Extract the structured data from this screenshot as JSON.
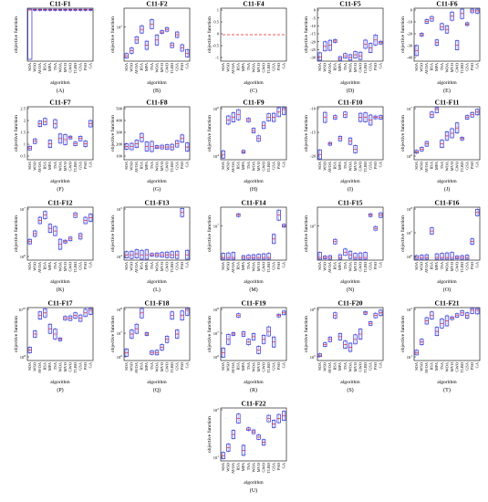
{
  "figure": {
    "algorithms": [
      "SOA",
      "WSO",
      "AVOA",
      "RSA",
      "MPA",
      "TSA",
      "WOA",
      "MVO",
      "GWO",
      "TLBO",
      "GSA",
      "PSO",
      "GA"
    ],
    "xlabel": "algorithm",
    "ylabel": "objective function",
    "colors": {
      "box": "#2a2ad6",
      "median": "#e8232a",
      "outlier": "#222222",
      "axis": "#000000"
    }
  },
  "chart_data": [
    {
      "type": "box",
      "title": "C11-F1",
      "letter": "(A)",
      "scale": "linear",
      "yticks": [],
      "medians": [
        0.97,
        0.97,
        0.97,
        0.97,
        0.97,
        0.97,
        0.97,
        0.97,
        0.97,
        0.97,
        0.97,
        0.97,
        0.97
      ]
    },
    {
      "type": "box",
      "title": "C11-F2",
      "letter": "(B)",
      "scale": "log",
      "yticks": [
        "10^2"
      ],
      "medians": [
        0.1,
        0.2,
        0.4,
        0.6,
        0.3,
        0.7,
        0.4,
        0.55,
        0.6,
        0.3,
        0.5,
        0.25,
        0.15
      ]
    },
    {
      "type": "box",
      "title": "C11-F4",
      "letter": "(C)",
      "scale": "linear",
      "yticks": [
        "1",
        "0.5",
        "0",
        "-0.5",
        "-1"
      ],
      "medians": [
        0.5,
        0.5,
        0.5,
        0.5,
        0.5,
        0.5,
        0.5,
        0.5,
        0.5,
        0.5,
        0.5,
        0.5,
        0.5
      ]
    },
    {
      "type": "box",
      "title": "C11-F5",
      "letter": "(D)",
      "scale": "linear",
      "yticks": [
        "0",
        "-5",
        "-10",
        "-15",
        "-20",
        "-25",
        "-30"
      ],
      "medians": [
        0.08,
        0.28,
        0.3,
        0.38,
        0.05,
        0.1,
        0.07,
        0.12,
        0.1,
        0.32,
        0.25,
        0.4,
        0.35
      ]
    },
    {
      "type": "box",
      "title": "C11-F6",
      "letter": "(E)",
      "scale": "linear",
      "yticks": [
        "0",
        "-10",
        "-20",
        "-30",
        "-40"
      ],
      "medians": [
        0.2,
        0.5,
        0.75,
        0.8,
        0.35,
        0.65,
        0.6,
        0.85,
        0.3,
        0.9,
        0.7,
        0.95,
        0.95
      ]
    },
    {
      "type": "box",
      "title": "C11-F7",
      "letter": "(F)",
      "scale": "linear",
      "yticks": [
        "2.5",
        "2",
        "1.5",
        "1",
        "0.5"
      ],
      "medians": [
        0.22,
        0.35,
        0.68,
        0.72,
        0.3,
        0.68,
        0.4,
        0.38,
        0.42,
        0.3,
        0.4,
        0.3,
        0.68
      ]
    },
    {
      "type": "box",
      "title": "C11-F8",
      "letter": "(G)",
      "scale": "linear",
      "yticks": [
        "500",
        "400",
        "300",
        "200",
        "100"
      ],
      "medians": [
        0.25,
        0.25,
        0.3,
        0.42,
        0.25,
        0.25,
        0.24,
        0.24,
        0.24,
        0.24,
        0.3,
        0.4,
        0.24
      ]
    },
    {
      "type": "box",
      "title": "C11-F9",
      "letter": "(H)",
      "scale": "log",
      "yticks": [
        "10^6",
        "10^4"
      ],
      "medians": [
        0.1,
        0.75,
        0.8,
        0.85,
        0.15,
        0.75,
        0.55,
        0.4,
        0.65,
        0.8,
        0.8,
        0.9,
        0.95
      ]
    },
    {
      "type": "box",
      "title": "C11-F10",
      "letter": "(I)",
      "scale": "linear",
      "yticks": [
        "-10",
        "-15",
        "-20"
      ],
      "medians": [
        0.1,
        0.8,
        0.3,
        0.8,
        0.4,
        0.85,
        0.35,
        0.2,
        0.8,
        0.8,
        0.75,
        0.8,
        0.8
      ]
    },
    {
      "type": "box",
      "title": "C11-F11",
      "letter": "(J)",
      "scale": "log",
      "yticks": [
        "10^7",
        "10^6"
      ],
      "medians": [
        0.15,
        0.2,
        0.3,
        0.85,
        0.95,
        0.3,
        0.45,
        0.5,
        0.6,
        0.4,
        0.8,
        0.85,
        0.9
      ]
    },
    {
      "type": "box",
      "title": "C11-F12",
      "letter": "(K)",
      "scale": "log",
      "yticks": [
        "10^7",
        "10^6"
      ],
      "medians": [
        0.35,
        0.5,
        0.75,
        0.85,
        0.6,
        0.55,
        0.3,
        0.35,
        0.4,
        0.85,
        0.45,
        0.75,
        0.8
      ]
    },
    {
      "type": "box",
      "title": "C11-F13",
      "letter": "(L)",
      "scale": "log",
      "yticks": [
        "10^5",
        "10^4"
      ],
      "medians": [
        0.1,
        0.1,
        0.12,
        0.1,
        0.1,
        0.1,
        0.1,
        0.1,
        0.1,
        0.1,
        0.1,
        0.9,
        0.1
      ]
    },
    {
      "type": "box",
      "title": "C11-F14",
      "letter": "(M)",
      "scale": "log",
      "yticks": [
        "10^7"
      ],
      "medians": [
        0.05,
        0.05,
        0.05,
        0.85,
        0.05,
        0.05,
        0.05,
        0.05,
        0.05,
        0.05,
        0.4,
        0.85,
        0.65
      ]
    },
    {
      "type": "box",
      "title": "C11-F15",
      "letter": "(N)",
      "scale": "log",
      "yticks": [
        "10^5"
      ],
      "medians": [
        0.05,
        0.05,
        0.05,
        0.35,
        0.05,
        0.15,
        0.1,
        0.05,
        0.05,
        0.05,
        0.85,
        0.6,
        0.85
      ]
    },
    {
      "type": "box",
      "title": "C11-F16",
      "letter": "(O)",
      "scale": "log",
      "yticks": [
        "10^8",
        "10^7",
        "10^6"
      ],
      "medians": [
        0.05,
        0.05,
        0.05,
        0.55,
        0.05,
        0.05,
        0.05,
        0.05,
        0.05,
        0.05,
        0.05,
        0.35,
        0.9
      ]
    },
    {
      "type": "box",
      "title": "C11-F17",
      "letter": "(P)",
      "scale": "log",
      "yticks": [
        "10^10",
        "10^8"
      ],
      "medians": [
        0.2,
        0.5,
        0.85,
        0.9,
        0.6,
        0.5,
        0.4,
        0.8,
        0.8,
        0.85,
        0.8,
        0.9,
        0.95
      ]
    },
    {
      "type": "box",
      "title": "C11-F18",
      "letter": "(Q)",
      "scale": "log",
      "yticks": [
        "10^8",
        "10^7",
        "10^6"
      ],
      "medians": [
        0.15,
        0.5,
        0.6,
        0.9,
        0.5,
        0.15,
        0.15,
        0.25,
        0.4,
        0.85,
        0.5,
        0.85,
        0.95
      ]
    },
    {
      "type": "box",
      "title": "C11-F19",
      "letter": "(R)",
      "scale": "log",
      "yticks": [
        "10^8",
        "10^7",
        "10^6"
      ],
      "medians": [
        0.15,
        0.4,
        0.5,
        0.85,
        0.5,
        0.35,
        0.45,
        0.2,
        0.4,
        0.55,
        0.35,
        0.85,
        0.9
      ]
    },
    {
      "type": "box",
      "title": "C11-F20",
      "letter": "(S)",
      "scale": "log",
      "yticks": [
        "10^6",
        "10^5"
      ],
      "medians": [
        0.1,
        0.3,
        0.4,
        0.85,
        0.45,
        0.3,
        0.25,
        0.4,
        0.5,
        0.9,
        0.7,
        0.85,
        0.9
      ]
    },
    {
      "type": "box",
      "title": "C11-F21",
      "letter": "(T)",
      "scale": "log",
      "yticks": [
        "10^2",
        "10^1"
      ],
      "medians": [
        0.15,
        0.35,
        0.75,
        0.85,
        0.55,
        0.7,
        0.75,
        0.8,
        0.85,
        0.9,
        0.85,
        0.95,
        0.95
      ]
    },
    {
      "type": "box",
      "title": "C11-F22",
      "letter": "(U)",
      "scale": "log",
      "yticks": [
        "10^2",
        "10^1"
      ],
      "medians": [
        0.1,
        0.25,
        0.5,
        0.8,
        0.2,
        0.6,
        0.55,
        0.45,
        0.35,
        0.8,
        0.7,
        0.8,
        0.85
      ]
    }
  ]
}
